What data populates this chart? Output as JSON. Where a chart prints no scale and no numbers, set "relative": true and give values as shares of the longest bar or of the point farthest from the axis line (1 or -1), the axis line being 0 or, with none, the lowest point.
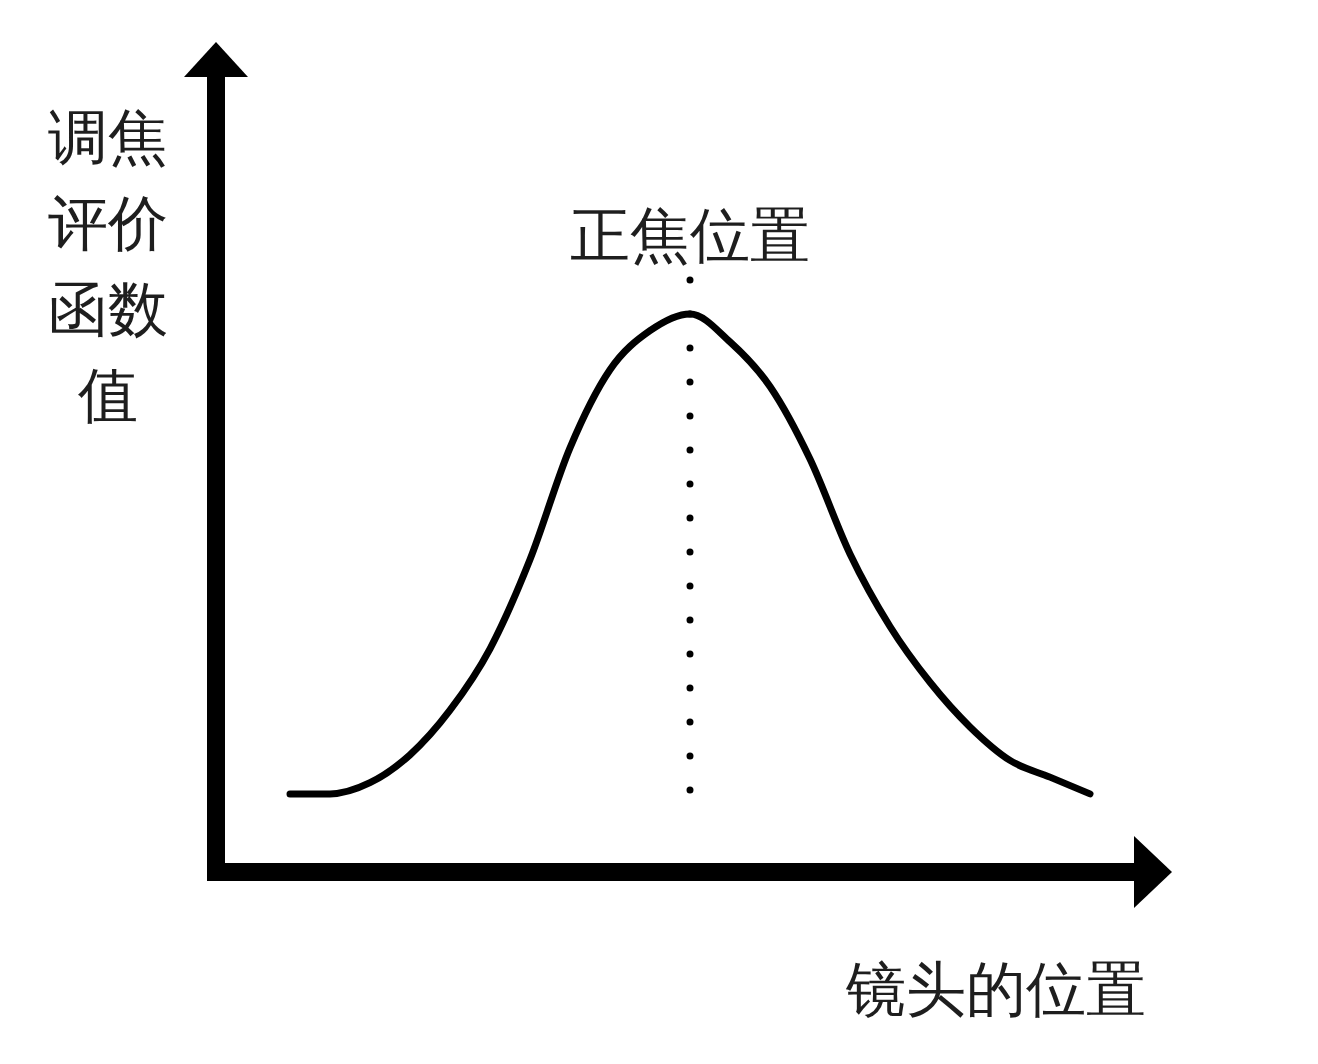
{
  "chart_data": {
    "type": "line",
    "relative": true,
    "ylabel": "调焦评价函数值",
    "xlabel": "镜头的位置",
    "annotations": [
      "正焦位置"
    ],
    "categories": [
      null,
      null,
      null,
      null,
      null,
      null,
      null,
      null,
      null,
      null,
      null,
      null,
      null,
      null,
      null,
      null,
      null,
      null,
      null,
      null,
      null
    ],
    "values": [
      0.14,
      0.14,
      0.16,
      0.21,
      0.29,
      0.4,
      0.56,
      0.76,
      0.9,
      0.97,
      1,
      0.95,
      0.87,
      0.74,
      0.57,
      0.44,
      0.34,
      0.26,
      0.2,
      0.17,
      0.14
    ],
    "color": "#000000"
  }
}
